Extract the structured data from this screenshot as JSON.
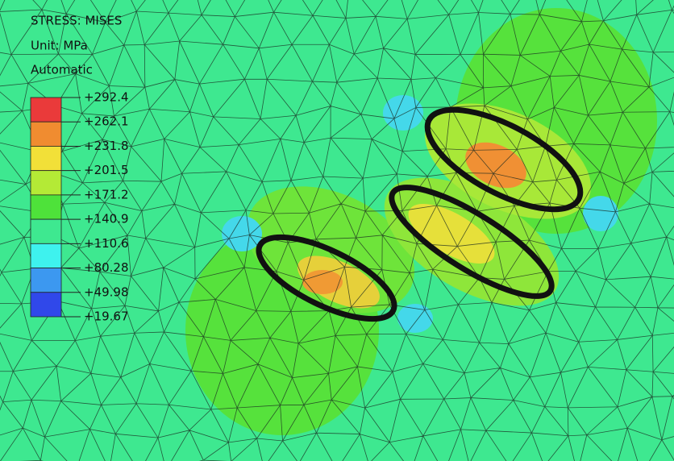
{
  "header": {
    "lines": [
      "STRESS: MISES",
      "Unit: MPa",
      "Automatic"
    ]
  },
  "legend": {
    "labels": [
      "+292.4",
      "+262.1",
      "+231.8",
      "+201.5",
      "+171.2",
      "+140.9",
      "+110.6",
      "+80.28",
      "+49.98",
      "+19.67"
    ],
    "colors": [
      "#ea3a3a",
      "#f08c30",
      "#f2e038",
      "#b4ea36",
      "#4ee23a",
      "#3ee890",
      "#3ef2ee",
      "#3c98f0",
      "#3048ea"
    ]
  }
}
